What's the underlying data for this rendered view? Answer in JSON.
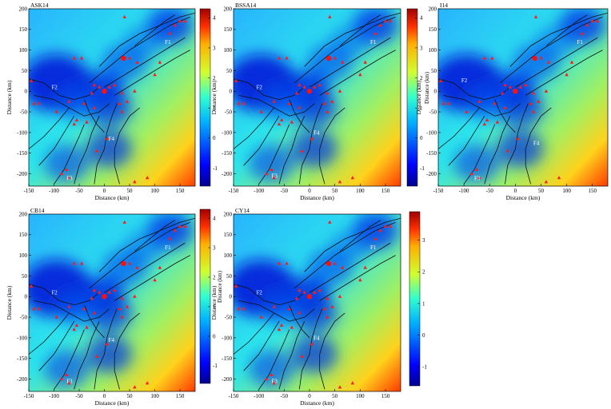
{
  "figure": {
    "panel_order": [
      "ASK14",
      "BSSA14",
      "I14",
      "CB14",
      "CY14"
    ]
  },
  "chart_data": [
    {
      "type": "heatmap",
      "title": "ASK14",
      "xlabel": "Distance (km)",
      "ylabel": "Distance (km)",
      "colorbar_label": "",
      "xlim": [
        -150,
        180
      ],
      "ylim": [
        -230,
        200
      ],
      "x_ticks": [
        -150,
        -100,
        -50,
        0,
        50,
        100,
        150
      ],
      "y_ticks": [
        -200,
        -150,
        -100,
        -50,
        0,
        50,
        100,
        150,
        200
      ],
      "colorbar_ticks": [
        -1,
        0,
        1,
        2,
        3,
        4
      ],
      "colorbar_range": [
        -1.6,
        4.3
      ],
      "fault_labels": [
        {
          "label": "F1",
          "x": 120,
          "y": 115
        },
        {
          "label": "F2",
          "x": -105,
          "y": 5
        },
        {
          "label": "F3",
          "x": -75,
          "y": -215
        },
        {
          "label": "F4",
          "x": 8,
          "y": -120
        }
      ]
    },
    {
      "type": "heatmap",
      "title": "BSSA14",
      "xlabel": "Distance (km)",
      "ylabel": "Distance (km)",
      "colorbar_label": "Distance (km)",
      "xlim": [
        -150,
        180
      ],
      "ylim": [
        -230,
        200
      ],
      "x_ticks": [
        -150,
        -100,
        -50,
        0,
        50,
        100,
        150
      ],
      "y_ticks": [
        -200,
        -150,
        -100,
        -50,
        0,
        50,
        100,
        150,
        200
      ],
      "colorbar_ticks": [
        -1,
        0,
        1,
        2,
        3,
        4
      ],
      "colorbar_range": [
        -1.6,
        4.3
      ],
      "fault_labels": [
        {
          "label": "F1",
          "x": 120,
          "y": 115
        },
        {
          "label": "F2",
          "x": -105,
          "y": 5
        },
        {
          "label": "F3",
          "x": -75,
          "y": -210
        },
        {
          "label": "F4",
          "x": 8,
          "y": -105
        }
      ]
    },
    {
      "type": "heatmap",
      "title": "I14",
      "xlabel": "Distance (km)",
      "ylabel": "Distance (km)",
      "colorbar_label": "Distance (km)",
      "xlim": [
        -150,
        180
      ],
      "ylim": [
        -230,
        200
      ],
      "x_ticks": [
        -150,
        -100,
        -50,
        0,
        50,
        100,
        150
      ],
      "y_ticks": [
        -200,
        -150,
        -100,
        -50,
        0,
        50,
        100,
        150,
        200
      ],
      "colorbar_ticks": [
        -1,
        0,
        1,
        2,
        3,
        4
      ],
      "colorbar_range": [
        -1.6,
        4.3
      ],
      "fault_labels": [
        {
          "label": "F1",
          "x": 120,
          "y": 115
        },
        {
          "label": "F2",
          "x": -105,
          "y": 22
        },
        {
          "label": "F3",
          "x": -80,
          "y": -215
        },
        {
          "label": "F4",
          "x": 35,
          "y": -130
        }
      ]
    },
    {
      "type": "heatmap",
      "title": "CB14",
      "xlabel": "Distance (km)",
      "ylabel": "Distance (km)",
      "colorbar_label": "Distance (km)",
      "xlim": [
        -150,
        180
      ],
      "ylim": [
        -230,
        200
      ],
      "x_ticks": [
        -150,
        -100,
        -50,
        0,
        50,
        100,
        150
      ],
      "y_ticks": [
        -200,
        -150,
        -100,
        -50,
        0,
        50,
        100,
        150,
        200
      ],
      "colorbar_ticks": [
        -1,
        0,
        1,
        2,
        3,
        4
      ],
      "colorbar_range": [
        -1.6,
        4.3
      ],
      "fault_labels": [
        {
          "label": "F1",
          "x": 120,
          "y": 115
        },
        {
          "label": "F2",
          "x": -105,
          "y": 5
        },
        {
          "label": "F3",
          "x": -75,
          "y": -210
        },
        {
          "label": "F4",
          "x": 8,
          "y": -110
        }
      ]
    },
    {
      "type": "heatmap",
      "title": "CY14",
      "xlabel": "Distance (km)",
      "ylabel": "Distance (km)",
      "colorbar_label": "",
      "xlim": [
        -150,
        180
      ],
      "ylim": [
        -230,
        200
      ],
      "x_ticks": [
        -150,
        -100,
        -50,
        0,
        50,
        100,
        150
      ],
      "y_ticks": [
        -200,
        -150,
        -100,
        -50,
        0,
        50,
        100,
        150,
        200
      ],
      "colorbar_ticks": [
        -1,
        0,
        1,
        2,
        3
      ],
      "colorbar_range": [
        -1.6,
        3.9
      ],
      "fault_labels": [
        {
          "label": "F1",
          "x": 120,
          "y": 115
        },
        {
          "label": "F2",
          "x": -105,
          "y": 5
        },
        {
          "label": "F3",
          "x": -75,
          "y": -210
        },
        {
          "label": "F4",
          "x": 8,
          "y": -105
        }
      ]
    }
  ],
  "stations": [
    {
      "x": 40,
      "y": 180
    },
    {
      "x": 140,
      "y": 160
    },
    {
      "x": 150,
      "y": 170
    },
    {
      "x": 160,
      "y": 170
    },
    {
      "x": 130,
      "y": 140
    },
    {
      "x": -60,
      "y": 80
    },
    {
      "x": -45,
      "y": 80
    },
    {
      "x": 50,
      "y": 80
    },
    {
      "x": 65,
      "y": 70
    },
    {
      "x": 110,
      "y": 70
    },
    {
      "x": 100,
      "y": 40
    },
    {
      "x": -145,
      "y": 25
    },
    {
      "x": -20,
      "y": 15
    },
    {
      "x": -10,
      "y": 10
    },
    {
      "x": 10,
      "y": 10
    },
    {
      "x": 20,
      "y": 15
    },
    {
      "x": -25,
      "y": -5
    },
    {
      "x": 35,
      "y": -5
    },
    {
      "x": 60,
      "y": 0
    },
    {
      "x": -140,
      "y": -30
    },
    {
      "x": -130,
      "y": -30
    },
    {
      "x": -70,
      "y": -25
    },
    {
      "x": -40,
      "y": -30
    },
    {
      "x": -20,
      "y": -40
    },
    {
      "x": 30,
      "y": -30
    },
    {
      "x": 45,
      "y": -25
    },
    {
      "x": -95,
      "y": -50
    },
    {
      "x": -55,
      "y": -70
    },
    {
      "x": -60,
      "y": -80
    },
    {
      "x": -35,
      "y": -75
    },
    {
      "x": 35,
      "y": -50
    },
    {
      "x": 5,
      "y": -115
    },
    {
      "x": -15,
      "y": -145
    },
    {
      "x": -75,
      "y": -190
    },
    {
      "x": -85,
      "y": -200
    },
    {
      "x": -70,
      "y": -210
    },
    {
      "x": 85,
      "y": -210
    },
    {
      "x": 60,
      "y": -220
    }
  ],
  "epicenters": [
    {
      "x": 0,
      "y": 0
    },
    {
      "x": 38,
      "y": 80
    }
  ]
}
